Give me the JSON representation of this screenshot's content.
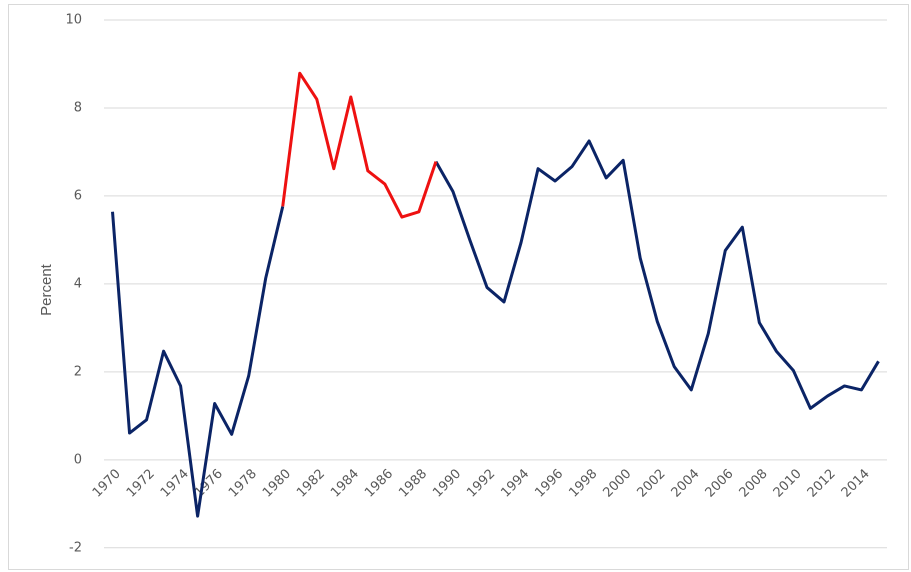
{
  "chart_data": {
    "type": "line",
    "y_label": "Percent",
    "x": [
      1970,
      1971,
      1972,
      1973,
      1974,
      1975,
      1976,
      1977,
      1978,
      1979,
      1980,
      1981,
      1982,
      1983,
      1984,
      1985,
      1986,
      1987,
      1988,
      1989,
      1990,
      1991,
      1992,
      1993,
      1994,
      1995,
      1996,
      1997,
      1998,
      1999,
      2000,
      2001,
      2002,
      2003,
      2004,
      2005,
      2006,
      2007,
      2008,
      2009,
      2010,
      2011,
      2012,
      2013,
      2014,
      2015
    ],
    "series": [
      {
        "color": "#0b2466",
        "values": [
          5.64,
          0.61,
          0.91,
          2.47,
          1.68,
          -1.28,
          1.28,
          0.58,
          1.91,
          4.13,
          5.76,
          null,
          null,
          null,
          null,
          null,
          null,
          null,
          null,
          6.78,
          6.1,
          4.99,
          3.92,
          3.59,
          4.94,
          6.62,
          6.34,
          6.67,
          7.25,
          6.41,
          6.81,
          4.59,
          3.15,
          2.12,
          1.59,
          2.87,
          4.76,
          5.29,
          3.12,
          2.47,
          2.03,
          1.17,
          1.45,
          1.68,
          1.59,
          2.24
        ]
      },
      {
        "color": "#ee1111",
        "values": [
          null,
          null,
          null,
          null,
          null,
          null,
          null,
          null,
          null,
          null,
          5.76,
          8.79,
          8.2,
          6.62,
          8.25,
          6.57,
          6.27,
          5.52,
          5.64,
          6.78,
          null,
          null,
          null,
          null,
          null,
          null,
          null,
          null,
          null,
          null,
          null,
          null,
          null,
          null,
          null,
          null,
          null,
          null,
          null,
          null,
          null,
          null,
          null,
          null,
          null,
          null
        ]
      }
    ],
    "xlim": [
      1969.5,
      2015.5
    ],
    "xticks": [
      1970,
      1972,
      1974,
      1976,
      1978,
      1980,
      1982,
      1984,
      1986,
      1988,
      1990,
      1992,
      1994,
      1996,
      1998,
      2000,
      2002,
      2004,
      2006,
      2008,
      2010,
      2012,
      2014
    ],
    "ylim": [
      -2.3,
      10
    ],
    "yticks": [
      -2,
      0,
      2,
      4,
      6,
      8,
      10
    ],
    "grid": true
  }
}
